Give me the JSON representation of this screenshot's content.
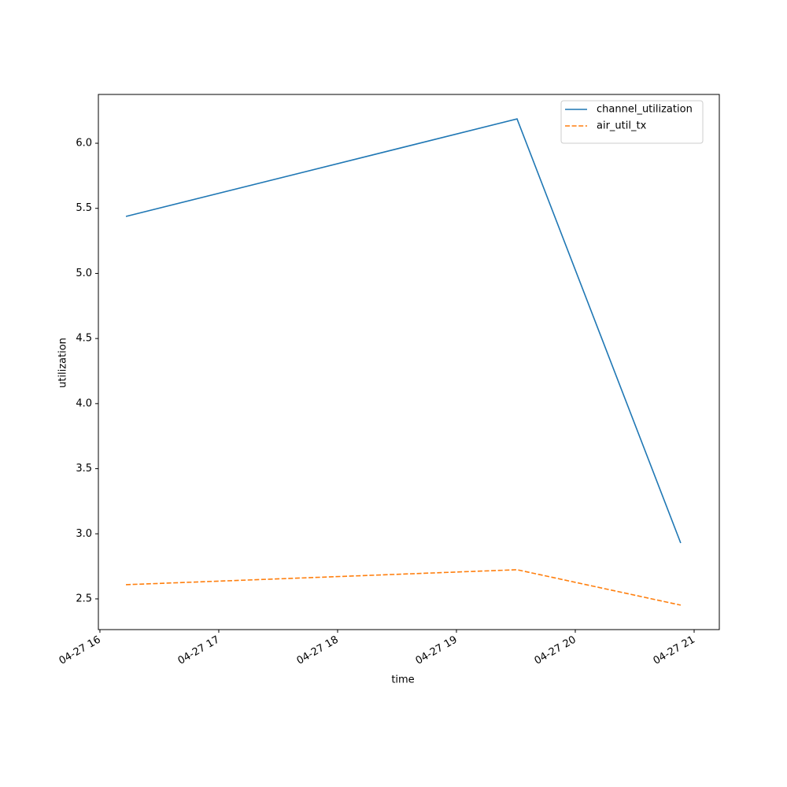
{
  "chart_data": {
    "type": "line",
    "x_label": "time",
    "y_label": "utilization",
    "x": [
      16.219,
      19.51,
      20.887
    ],
    "series": [
      {
        "name": "channel_utilization",
        "color": "#1f77b4",
        "linestyle": "solid",
        "values": [
          5.438,
          6.187,
          2.929
        ]
      },
      {
        "name": "air_util_tx",
        "color": "#ff7f0e",
        "linestyle": "dashed",
        "values": [
          2.609,
          2.724,
          2.452
        ]
      }
    ],
    "xlim": [
      15.987,
      21.212
    ],
    "xticks": [
      {
        "value": 16,
        "label": "04-27 16"
      },
      {
        "value": 17,
        "label": "04-27 17"
      },
      {
        "value": 18,
        "label": "04-27 18"
      },
      {
        "value": 19,
        "label": "04-27 19"
      },
      {
        "value": 20,
        "label": "04-27 20"
      },
      {
        "value": 21,
        "label": "04-27 21"
      }
    ],
    "ylim": [
      2.264,
      6.375
    ],
    "yticks": [
      2.5,
      {
        "value": 3,
        "label": "3.0"
      },
      3.5,
      {
        "value": 4,
        "label": "4.0"
      },
      4.5,
      {
        "value": 5,
        "label": "5.0"
      },
      5.5,
      {
        "value": 6,
        "label": "6.0"
      }
    ],
    "grid": false,
    "legend": "upper right"
  }
}
